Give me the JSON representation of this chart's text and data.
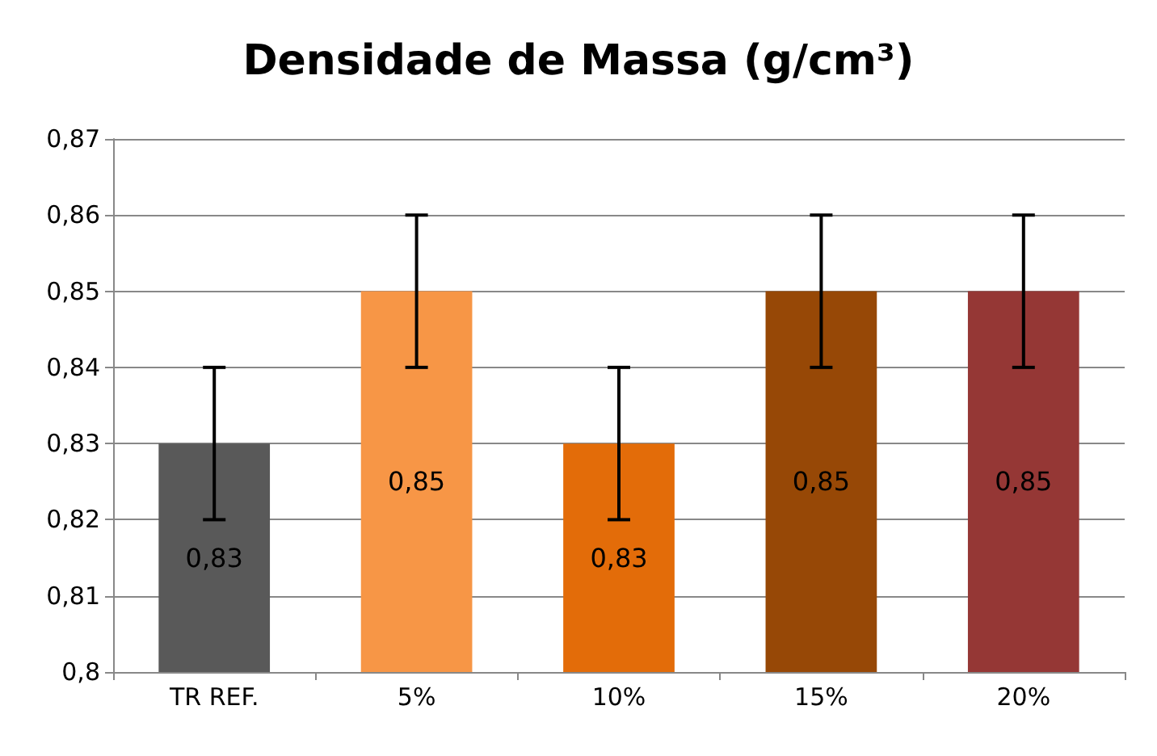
{
  "chart_data": {
    "type": "bar",
    "title": "Densidade de Massa (g/cm³)",
    "categories": [
      "TR REF.",
      "5%",
      "10%",
      "15%",
      "20%"
    ],
    "values": [
      0.83,
      0.85,
      0.83,
      0.85,
      0.85
    ],
    "colors": [
      "#595959",
      "#f79646",
      "#e36c09",
      "#974806",
      "#953735"
    ],
    "errors": [
      0.01,
      0.01,
      0.01,
      0.01,
      0.01
    ],
    "value_labels": [
      "0,83",
      "0,85",
      "0,83",
      "0,85",
      "0,85"
    ],
    "ylim": [
      0.8,
      0.87
    ],
    "yticks": [
      {
        "value": 0.8,
        "label": "0,8"
      },
      {
        "value": 0.81,
        "label": "0,81"
      },
      {
        "value": 0.82,
        "label": "0,82"
      },
      {
        "value": 0.83,
        "label": "0,83"
      },
      {
        "value": 0.84,
        "label": "0,84"
      },
      {
        "value": 0.85,
        "label": "0,85"
      },
      {
        "value": 0.86,
        "label": "0,86"
      },
      {
        "value": 0.87,
        "label": "0,87"
      }
    ],
    "grid": "y"
  }
}
